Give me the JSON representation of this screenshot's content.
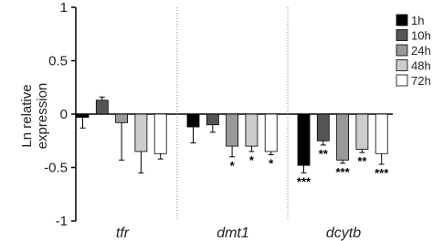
{
  "chart_data": {
    "type": "bar",
    "ylabel": "Ln relative expression",
    "categories": [
      "tfr",
      "dmt1",
      "dcytb"
    ],
    "ylim": [
      -1,
      1
    ],
    "yticks": [
      1,
      0.5,
      0,
      -0.5,
      -1
    ],
    "series": [
      {
        "name": "1h",
        "color": "#000000",
        "values": [
          -0.03,
          -0.12,
          -0.48
        ],
        "errors": [
          0.1,
          0.15,
          0.07
        ],
        "significance": [
          null,
          null,
          "***"
        ]
      },
      {
        "name": "10h",
        "color": "#555555",
        "values": [
          0.13,
          -0.1,
          -0.25
        ],
        "errors": [
          0.03,
          0.07,
          0.04
        ],
        "significance": [
          null,
          null,
          "**"
        ]
      },
      {
        "name": "24h",
        "color": "#999999",
        "values": [
          -0.08,
          -0.3,
          -0.43
        ],
        "errors": [
          0.35,
          0.1,
          0.03
        ],
        "significance": [
          null,
          "*",
          "***"
        ]
      },
      {
        "name": "48h",
        "color": "#cccccc",
        "values": [
          -0.35,
          -0.3,
          -0.33
        ],
        "errors": [
          0.2,
          0.05,
          0.03
        ],
        "significance": [
          null,
          "*",
          "**"
        ]
      },
      {
        "name": "72h",
        "color": "#ffffff",
        "values": [
          -0.37,
          -0.35,
          -0.37
        ],
        "errors": [
          0.05,
          0.03,
          0.1
        ],
        "significance": [
          null,
          "*",
          "***"
        ]
      }
    ]
  }
}
